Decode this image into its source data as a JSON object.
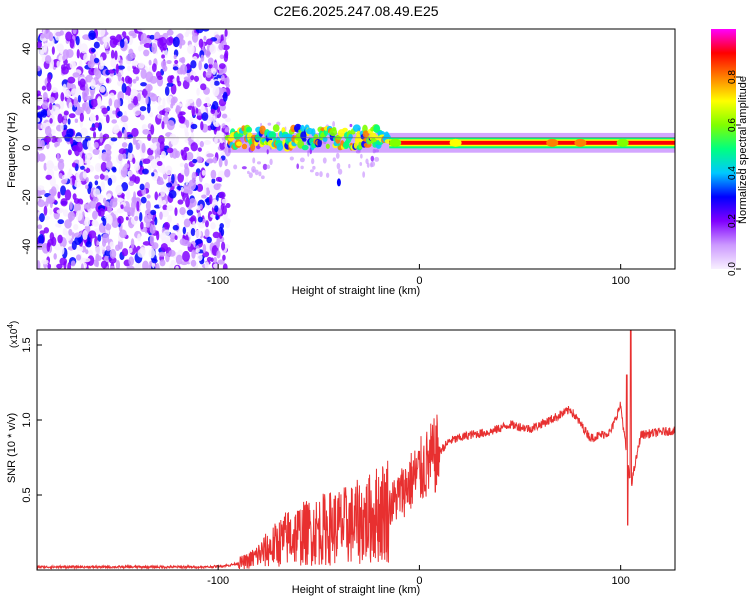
{
  "title": "C2E6.2025.247.08.49.E25",
  "chart_data": [
    {
      "type": "heatmap",
      "xlabel": "Height of straight line (km)",
      "ylabel": "Frequency (Hz)",
      "xlim": [
        -190,
        127
      ],
      "ylim": [
        -49,
        48
      ],
      "x_ticks": [
        -100,
        0,
        100
      ],
      "y_ticks": [
        -40,
        -20,
        0,
        20,
        40
      ],
      "colorbar": {
        "label": "Normalized spectral amplitude",
        "range": [
          0.0,
          1.0
        ],
        "ticks": [
          0.0,
          0.2,
          0.4,
          0.6,
          0.8
        ],
        "tick_labels": [
          "0.0",
          "0.2",
          "0.4",
          "0.6",
          "0.8"
        ],
        "colors": [
          "#f8f0ff",
          "#cc99ff",
          "#8000ff",
          "#0000ff",
          "#00c8ff",
          "#00ff80",
          "#80ff00",
          "#ffff00",
          "#ff8000",
          "#ff0000",
          "#ff00ff"
        ]
      },
      "noise_region": {
        "x": [
          -190,
          -95
        ],
        "y": [
          -49,
          48
        ]
      },
      "signal_band": {
        "x": [
          -95,
          127
        ],
        "center_frequency": 2
      }
    },
    {
      "type": "line",
      "xlabel": "Height of straight line (km)",
      "ylabel": "SNR (10 * v/v)",
      "scale_label": "(x10",
      "scale_exponent": "4",
      "scale_close": ")",
      "xlim": [
        -190,
        127
      ],
      "ylim": [
        0,
        1.6
      ],
      "x_ticks": [
        -100,
        0,
        100
      ],
      "y_ticks": [
        0.5,
        1.0,
        1.5
      ],
      "y_tick_labels": [
        "0.5",
        "1.0",
        "1.5"
      ],
      "series": [
        {
          "name": "SNR",
          "color": "#e83030",
          "x": [
            -190,
            -160,
            -130,
            -105,
            -95,
            -85,
            -75,
            -65,
            -55,
            -45,
            -35,
            -25,
            -15,
            -5,
            5,
            15,
            25,
            35,
            45,
            55,
            65,
            75,
            85,
            95,
            100,
            105,
            110,
            120,
            127
          ],
          "y": [
            0.02,
            0.02,
            0.02,
            0.02,
            0.03,
            0.06,
            0.14,
            0.22,
            0.25,
            0.28,
            0.3,
            0.34,
            0.42,
            0.58,
            0.72,
            0.86,
            0.9,
            0.92,
            0.97,
            0.94,
            1.0,
            1.07,
            0.88,
            0.92,
            1.1,
            0.55,
            0.9,
            0.92,
            0.93
          ]
        }
      ],
      "peak": {
        "x": 105,
        "y": 1.6
      },
      "dip": {
        "x": 104,
        "y": 0.3
      }
    }
  ]
}
